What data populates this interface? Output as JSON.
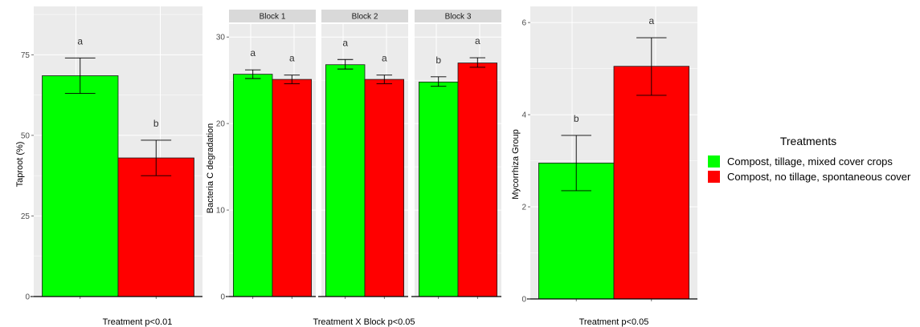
{
  "colors": {
    "compost_tillage": "#00ff00",
    "compost_no_tillage": "#ff0000",
    "panel_bg": "#ebebeb",
    "grid": "#ffffff",
    "strip_bg": "#d9d9d9"
  },
  "legend": {
    "title": "Treatments",
    "items": [
      {
        "label": "Compost, tillage, mixed cover crops",
        "color": "#00ff00"
      },
      {
        "label": "Compost, no tillage, spontaneous cover",
        "color": "#ff0000"
      }
    ]
  },
  "chart_data": [
    {
      "type": "bar",
      "ylabel": "Taproot (%)",
      "xlabel": "Treatment p<0.01",
      "yticks": [
        0,
        25,
        50,
        75
      ],
      "ylim": [
        0,
        90
      ],
      "grid": true,
      "series": [
        {
          "name": "Compost, tillage, mixed cover crops",
          "value": 68.5,
          "error": [
            63,
            74
          ],
          "letter": "a"
        },
        {
          "name": "Compost, no tillage, spontaneous cover",
          "value": 43,
          "error": [
            37.5,
            48.5
          ],
          "letter": "b"
        }
      ]
    },
    {
      "type": "bar",
      "ylabel": "Bacteria C degradation",
      "xlabel": "Treatment X Block p<0.05",
      "yticks": [
        0,
        10,
        20,
        30
      ],
      "ylim": [
        0,
        31.5
      ],
      "grid": true,
      "facets": [
        {
          "label": "Block 1",
          "bars": [
            {
              "name": "Compost, tillage, mixed cover crops",
              "value": 25.7,
              "error": [
                25.2,
                26.2
              ],
              "letter": "a"
            },
            {
              "name": "Compost, no tillage, spontaneous cover",
              "value": 25.1,
              "error": [
                24.6,
                25.6
              ],
              "letter": "a"
            }
          ]
        },
        {
          "label": "Block 2",
          "bars": [
            {
              "name": "Compost, tillage, mixed cover crops",
              "value": 26.8,
              "error": [
                26.3,
                27.4
              ],
              "letter": "a"
            },
            {
              "name": "Compost, no tillage, spontaneous cover",
              "value": 25.1,
              "error": [
                24.6,
                25.6
              ],
              "letter": "a"
            }
          ]
        },
        {
          "label": "Block 3",
          "bars": [
            {
              "name": "Compost, tillage, mixed cover crops",
              "value": 24.8,
              "error": [
                24.3,
                25.4
              ],
              "letter": "b"
            },
            {
              "name": "Compost, no tillage, spontaneous cover",
              "value": 27.0,
              "error": [
                26.5,
                27.6
              ],
              "letter": "a"
            }
          ]
        }
      ]
    },
    {
      "type": "bar",
      "ylabel": "Mycorrhiza Group",
      "xlabel": "Treatment p<0.05",
      "yticks": [
        0,
        2,
        4,
        6
      ],
      "ylim": [
        0,
        6.35
      ],
      "grid": true,
      "series": [
        {
          "name": "Compost, tillage, mixed cover crops",
          "value": 2.95,
          "error": [
            2.35,
            3.55
          ],
          "letter": "b"
        },
        {
          "name": "Compost, no tillage, spontaneous cover",
          "value": 5.05,
          "error": [
            4.42,
            5.67
          ],
          "letter": "a"
        }
      ]
    }
  ]
}
